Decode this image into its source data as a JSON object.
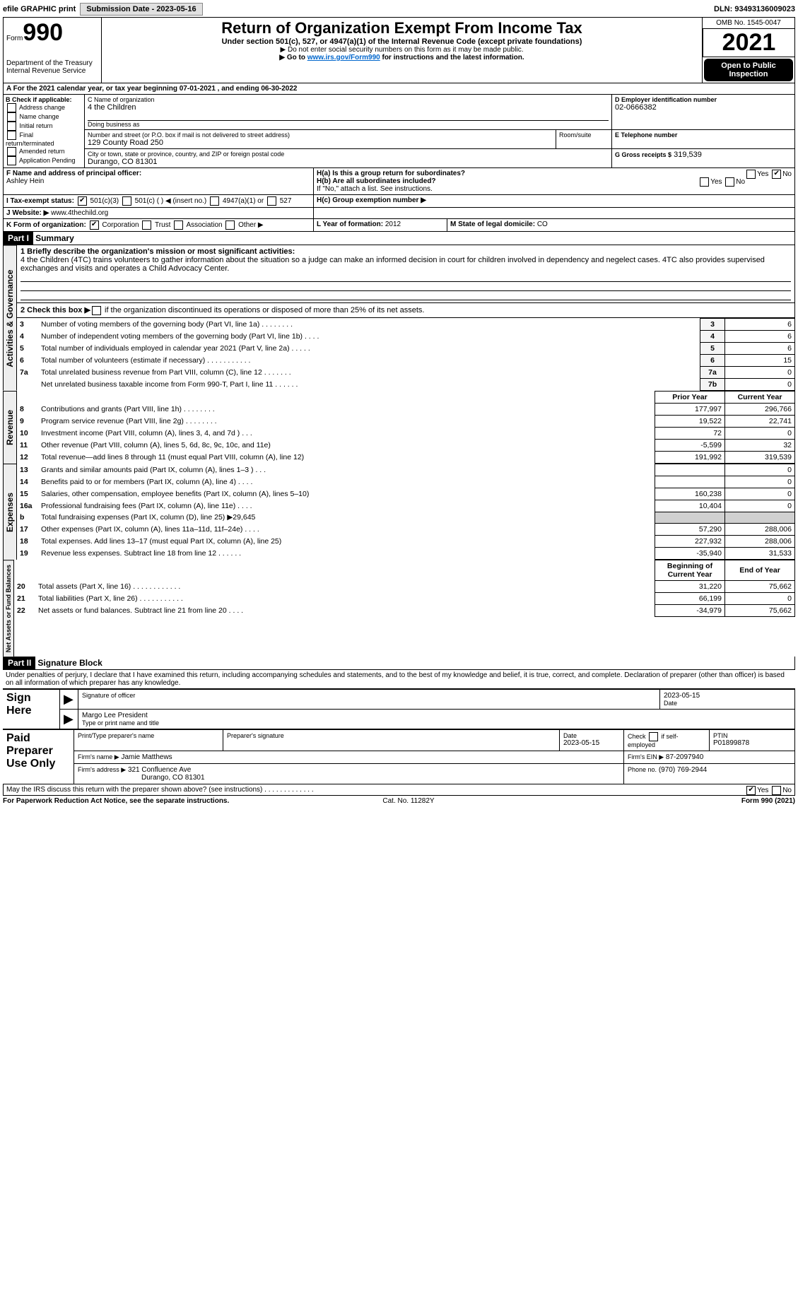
{
  "topbar": {
    "efile": "efile GRAPHIC print",
    "submission_label": "Submission Date - 2023-05-16",
    "dln": "DLN: 93493136009023"
  },
  "header": {
    "form_word": "Form",
    "form_no": "990",
    "dept": "Department of the Treasury",
    "irs": "Internal Revenue Service",
    "title": "Return of Organization Exempt From Income Tax",
    "sub": "Under section 501(c), 527, or 4947(a)(1) of the Internal Revenue Code (except private foundations)",
    "warn": "▶ Do not enter social security numbers on this form as it may be made public.",
    "goto_pre": "▶ Go to ",
    "goto_link": "www.irs.gov/Form990",
    "goto_post": " for instructions and the latest information.",
    "omb": "OMB No. 1545-0047",
    "year": "2021",
    "open": "Open to Public Inspection"
  },
  "A": {
    "text_pre": "A For the 2021 calendar year, or tax year beginning ",
    "begin": "07-01-2021",
    "mid": " , and ending ",
    "end": "06-30-2022"
  },
  "B": {
    "label": "B Check if applicable:",
    "items": [
      "Address change",
      "Name change",
      "Initial return",
      "Final return/terminated",
      "Amended return",
      "Application Pending"
    ]
  },
  "C": {
    "name_label": "C Name of organization",
    "name": "4 the Children",
    "dba_label": "Doing business as",
    "dba": "",
    "street_label": "Number and street (or P.O. box if mail is not delivered to street address)",
    "street": "129 County Road 250",
    "room_label": "Room/suite",
    "city_label": "City or town, state or province, country, and ZIP or foreign postal code",
    "city": "Durango, CO  81301"
  },
  "D": {
    "label": "D Employer identification number",
    "val": "02-0666382"
  },
  "E": {
    "label": "E Telephone number",
    "val": ""
  },
  "G": {
    "label": "G Gross receipts $",
    "val": "319,539"
  },
  "F": {
    "label": "F  Name and address of principal officer:",
    "val": "Ashley Hein"
  },
  "H": {
    "a": "H(a)  Is this a group return for subordinates?",
    "b": "H(b)  Are all subordinates included?",
    "b2": "If \"No,\" attach a list. See instructions.",
    "c": "H(c)  Group exemption number ▶",
    "yes": "Yes",
    "no": "No"
  },
  "I": {
    "label": "I  Tax-exempt status:",
    "opts": [
      "501(c)(3)",
      "501(c) (  ) ◀ (insert no.)",
      "4947(a)(1) or",
      "527"
    ]
  },
  "J": {
    "label": "J  Website: ▶",
    "val": " www.4thechild.org"
  },
  "K": {
    "label": "K Form of organization:",
    "opts": [
      "Corporation",
      "Trust",
      "Association",
      "Other ▶"
    ]
  },
  "L": {
    "label": "L Year of formation: ",
    "val": "2012"
  },
  "M": {
    "label": "M State of legal domicile: ",
    "val": "CO"
  },
  "partI": {
    "tag": "Part I",
    "title": "Summary"
  },
  "mission": {
    "lead": "1  Briefly describe the organization's mission or most significant activities:",
    "text": "4 the Children (4TC) trains volunteers to gather information about the situation so a judge can make an informed decision in court for children involved in dependency and negelect cases. 4TC also provides supervised exchanges and visits and operates a Child Advocacy Center."
  },
  "line2": "2   Check this box ▶",
  "line2b": " if the organization discontinued its operations or disposed of more than 25% of its net assets.",
  "gov_rows": [
    {
      "n": "3",
      "t": "Number of voting members of the governing body (Part VI, line 1a)  .    .    .    .    .    .    .    .",
      "box": "3",
      "v": "6"
    },
    {
      "n": "4",
      "t": "Number of independent voting members of the governing body (Part VI, line 1b)  .    .    .    .",
      "box": "4",
      "v": "6"
    },
    {
      "n": "5",
      "t": "Total number of individuals employed in calendar year 2021 (Part V, line 2a)  .    .    .    .    .",
      "box": "5",
      "v": "6"
    },
    {
      "n": "6",
      "t": "Total number of volunteers (estimate if necessary)  .    .    .    .    .    .    .    .    .    .    .",
      "box": "6",
      "v": "15"
    },
    {
      "n": "7a",
      "t": "Total unrelated business revenue from Part VIII, column (C), line 12  .    .    .    .    .    .    .",
      "box": "7a",
      "v": "0"
    },
    {
      "n": "",
      "t": "Net unrelated business taxable income from Form 990-T, Part I, line 11  .    .    .    .    .    .",
      "box": "7b",
      "v": "0"
    }
  ],
  "py": "Prior Year",
  "cy": "Current Year",
  "rev_rows": [
    {
      "n": "8",
      "t": "Contributions and grants (Part VIII, line 1h)  .    .    .    .    .    .    .    .",
      "p": "177,997",
      "c": "296,766"
    },
    {
      "n": "9",
      "t": "Program service revenue (Part VIII, line 2g)  .    .    .    .    .    .    .    .",
      "p": "19,522",
      "c": "22,741"
    },
    {
      "n": "10",
      "t": "Investment income (Part VIII, column (A), lines 3, 4, and 7d )  .    .    .",
      "p": "72",
      "c": "0"
    },
    {
      "n": "11",
      "t": "Other revenue (Part VIII, column (A), lines 5, 6d, 8c, 9c, 10c, and 11e)",
      "p": "-5,599",
      "c": "32"
    },
    {
      "n": "12",
      "t": "Total revenue—add lines 8 through 11 (must equal Part VIII, column (A), line 12)",
      "p": "191,992",
      "c": "319,539"
    }
  ],
  "exp_rows": [
    {
      "n": "13",
      "t": "Grants and similar amounts paid (Part IX, column (A), lines 1–3 )  .    .    .",
      "p": "",
      "c": "0"
    },
    {
      "n": "14",
      "t": "Benefits paid to or for members (Part IX, column (A), line 4)  .    .    .    .",
      "p": "",
      "c": "0"
    },
    {
      "n": "15",
      "t": "Salaries, other compensation, employee benefits (Part IX, column (A), lines 5–10)",
      "p": "160,238",
      "c": "0"
    },
    {
      "n": "16a",
      "t": "Professional fundraising fees (Part IX, column (A), line 11e)  .    .    .    .",
      "p": "10,404",
      "c": "0"
    },
    {
      "n": "b",
      "t": "Total fundraising expenses (Part IX, column (D), line 25) ▶29,645",
      "p": "SHADE",
      "c": "SHADE"
    },
    {
      "n": "17",
      "t": "Other expenses (Part IX, column (A), lines 11a–11d, 11f–24e)  .    .    .    .",
      "p": "57,290",
      "c": "288,006"
    },
    {
      "n": "18",
      "t": "Total expenses. Add lines 13–17 (must equal Part IX, column (A), line 25)",
      "p": "227,932",
      "c": "288,006"
    },
    {
      "n": "19",
      "t": "Revenue less expenses. Subtract line 18 from line 12  .    .    .    .    .    .",
      "p": "-35,940",
      "c": "31,533"
    }
  ],
  "boy": "Beginning of Current Year",
  "eoy": "End of Year",
  "na_rows": [
    {
      "n": "20",
      "t": "Total assets (Part X, line 16)  .    .    .    .    .    .    .    .    .    .    .    .",
      "p": "31,220",
      "c": "75,662"
    },
    {
      "n": "21",
      "t": "Total liabilities (Part X, line 26)  .    .    .    .    .    .    .    .    .    .    .",
      "p": "66,199",
      "c": "0"
    },
    {
      "n": "22",
      "t": "Net assets or fund balances. Subtract line 21 from line 20  .    .    .    .",
      "p": "-34,979",
      "c": "75,662"
    }
  ],
  "partII": {
    "tag": "Part II",
    "title": "Signature Block"
  },
  "declare": "Under penalties of perjury, I declare that I have examined this return, including accompanying schedules and statements, and to the best of my knowledge and belief, it is true, correct, and complete. Declaration of preparer (other than officer) is based on all information of which preparer has any knowledge.",
  "sign": {
    "here": "Sign Here",
    "sig_officer": "Signature of officer",
    "date": "2023-05-15",
    "date_lbl": "Date",
    "name": "Margo Lee  President",
    "name_lbl": "Type or print name and title"
  },
  "paid": {
    "title": "Paid Preparer Use Only",
    "ptname_lbl": "Print/Type preparer's name",
    "ptname": "",
    "psig_lbl": "Preparer's signature",
    "pdate_lbl": "Date",
    "pdate": "2023-05-15",
    "self": "Check         if self-employed",
    "ptin_lbl": "PTIN",
    "ptin": "P01899878",
    "firm_lbl": "Firm's name    ▶",
    "firm": "Jamie Matthews",
    "ein_lbl": "Firm's EIN ▶",
    "ein": "87-2097940",
    "addr_lbl": "Firm's address ▶",
    "addr1": "321 Confluence Ave",
    "addr2": "Durango, CO  81301",
    "phone_lbl": "Phone no.",
    "phone": "(970) 769-2944"
  },
  "may": "May the IRS discuss this return with the preparer shown above? (see instructions)  .    .    .    .    .    .    .    .    .    .    .    .    .",
  "foot": {
    "l": "For Paperwork Reduction Act Notice, see the separate instructions.",
    "c": "Cat. No. 11282Y",
    "r": "Form 990 (2021)"
  },
  "vtabs": {
    "gov": "Activities & Governance",
    "rev": "Revenue",
    "exp": "Expenses",
    "na": "Net Assets or Fund Balances"
  }
}
